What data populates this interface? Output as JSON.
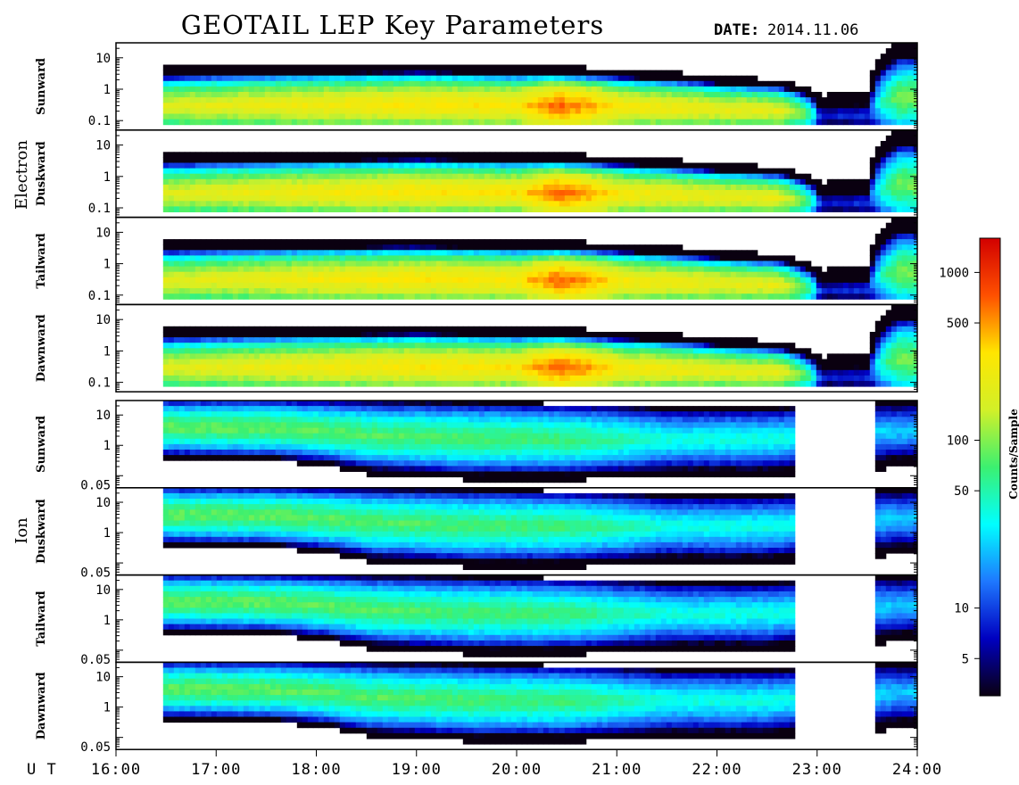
{
  "chart_data": {
    "type": "heatmap",
    "title": "GEOTAIL LEP Key Parameters",
    "date": {
      "label": "DATE:",
      "value": "2014.11.06"
    },
    "x": {
      "axis_label": "U T",
      "range_hours": [
        16,
        24
      ],
      "ticks": [
        {
          "hour": 16,
          "label": "16:00"
        },
        {
          "hour": 17,
          "label": "17:00"
        },
        {
          "hour": 18,
          "label": "18:00"
        },
        {
          "hour": 19,
          "label": "19:00"
        },
        {
          "hour": 20,
          "label": "20:00"
        },
        {
          "hour": 21,
          "label": "21:00"
        },
        {
          "hour": 22,
          "label": "22:00"
        },
        {
          "hour": 23,
          "label": "23:00"
        },
        {
          "hour": 24,
          "label": "24:00"
        }
      ]
    },
    "groups": [
      {
        "name": "Electron",
        "y_scale": "log",
        "y_range": [
          0.05,
          30
        ],
        "y_ticks": [
          {
            "value": 10,
            "label": "10"
          },
          {
            "value": 1,
            "label": "1"
          },
          {
            "value": 0.1,
            "label": "0.1"
          }
        ],
        "panels": [
          {
            "label": "Sunward"
          },
          {
            "label": "Duskward"
          },
          {
            "label": "Tailward"
          },
          {
            "label": "Dawnward"
          }
        ]
      },
      {
        "name": "Ion",
        "y_scale": "log",
        "y_range": [
          0.04,
          30
        ],
        "y_ticks": [
          {
            "value": 10,
            "label": "10"
          },
          {
            "value": 1,
            "label": "1"
          },
          {
            "value": 0.05,
            "label": "0.05"
          }
        ],
        "panels": [
          {
            "label": "Sunward"
          },
          {
            "label": "Duskward"
          },
          {
            "label": "Tailward"
          },
          {
            "label": "Dawnward"
          }
        ]
      }
    ],
    "colorbar": {
      "label": "Counts/Sample",
      "scale": "log",
      "range": [
        3,
        1600
      ],
      "ticks": [
        {
          "value": 5,
          "label": "5"
        },
        {
          "value": 10,
          "label": "10"
        },
        {
          "value": 50,
          "label": "50"
        },
        {
          "value": 100,
          "label": "100"
        },
        {
          "value": 500,
          "label": "500"
        },
        {
          "value": 1000,
          "label": "1000"
        }
      ],
      "colormap": [
        "#0a0010",
        "#0000c0",
        "#1e78ff",
        "#00ffff",
        "#3cf070",
        "#d2f028",
        "#ffe600",
        "#ff5000",
        "#d20000"
      ]
    },
    "series": [
      {
        "name": "electron",
        "coverage_hours": [
          16.47,
          24.0
        ],
        "data_gaps_hours": [],
        "flux_profile": [
          {
            "hour": 16.5,
            "low_mev": 0.07,
            "high_mev": 4.0,
            "peak_counts": 200
          },
          {
            "hour": 17.0,
            "low_mev": 0.07,
            "high_mev": 4.5,
            "peak_counts": 220
          },
          {
            "hour": 18.0,
            "low_mev": 0.07,
            "high_mev": 5.0,
            "peak_counts": 280
          },
          {
            "hour": 19.0,
            "low_mev": 0.07,
            "high_mev": 5.5,
            "peak_counts": 320
          },
          {
            "hour": 20.0,
            "low_mev": 0.07,
            "high_mev": 4.5,
            "peak_counts": 320
          },
          {
            "hour": 20.4,
            "low_mev": 0.07,
            "high_mev": 4.0,
            "peak_counts": 700
          },
          {
            "hour": 21.0,
            "low_mev": 0.07,
            "high_mev": 3.5,
            "peak_counts": 300
          },
          {
            "hour": 22.0,
            "low_mev": 0.07,
            "high_mev": 2.0,
            "peak_counts": 240
          },
          {
            "hour": 22.6,
            "low_mev": 0.07,
            "high_mev": 1.5,
            "peak_counts": 220
          },
          {
            "hour": 23.0,
            "low_mev": 0.07,
            "high_mev": 0.5,
            "peak_counts": 8
          },
          {
            "hour": 23.5,
            "low_mev": 0.07,
            "high_mev": 0.6,
            "peak_counts": 10
          },
          {
            "hour": 23.8,
            "low_mev": 0.07,
            "high_mev": 25.0,
            "peak_counts": 100
          }
        ]
      },
      {
        "name": "ion",
        "coverage_hours": [
          16.47,
          24.0
        ],
        "data_gaps_hours": [
          [
            22.75,
            23.55
          ]
        ],
        "flux_profile": [
          {
            "hour": 16.5,
            "low_kev": 0.4,
            "high_kev": 25.0,
            "peak_counts": 90
          },
          {
            "hour": 17.5,
            "low_kev": 0.35,
            "high_kev": 25.0,
            "peak_counts": 90
          },
          {
            "hour": 18.5,
            "low_kev": 0.12,
            "high_kev": 22.0,
            "peak_counts": 80
          },
          {
            "hour": 19.5,
            "low_kev": 0.08,
            "high_kev": 20.0,
            "peak_counts": 75
          },
          {
            "hour": 20.5,
            "low_kev": 0.08,
            "high_kev": 18.0,
            "peak_counts": 70
          },
          {
            "hour": 21.5,
            "low_kev": 0.1,
            "high_kev": 15.0,
            "peak_counts": 40
          },
          {
            "hour": 22.5,
            "low_kev": 0.1,
            "high_kev": 15.0,
            "peak_counts": 40
          },
          {
            "hour": 23.8,
            "low_kev": 0.2,
            "high_kev": 25.0,
            "peak_counts": 25
          }
        ]
      }
    ]
  }
}
